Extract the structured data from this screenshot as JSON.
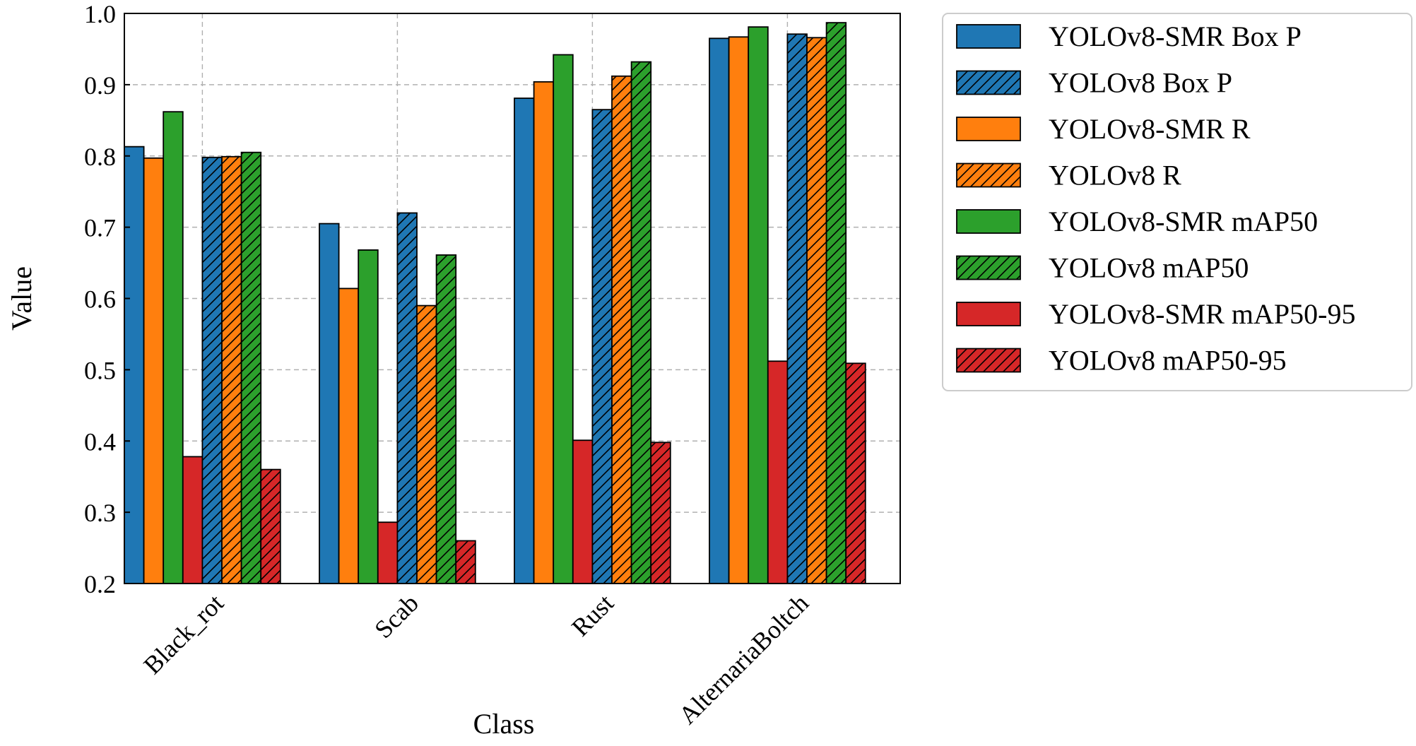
{
  "chart_data": {
    "type": "bar",
    "title": "",
    "xlabel": "Class",
    "ylabel": "Value",
    "ylim": [
      0.2,
      1.0
    ],
    "yticks": [
      "0.2",
      "0.3",
      "0.4",
      "0.5",
      "0.6",
      "0.7",
      "0.8",
      "0.9",
      "1.0"
    ],
    "grid": true,
    "legend_position": "outside-right-top",
    "categories": [
      "Black_rot",
      "Scab",
      "Rust",
      "AlternariaBoltch"
    ],
    "series": [
      {
        "name": "YOLOv8-SMR Box P",
        "color": "#1f77b4",
        "hatched": false,
        "values": [
          0.813,
          0.705,
          0.881,
          0.965
        ]
      },
      {
        "name": "YOLOv8-SMR R",
        "color": "#ff7f0e",
        "hatched": false,
        "values": [
          0.797,
          0.614,
          0.904,
          0.967
        ]
      },
      {
        "name": "YOLOv8-SMR mAP50",
        "color": "#2ca02c",
        "hatched": false,
        "values": [
          0.862,
          0.668,
          0.942,
          0.981
        ]
      },
      {
        "name": "YOLOv8-SMR mAP50-95",
        "color": "#d62728",
        "hatched": false,
        "values": [
          0.378,
          0.286,
          0.401,
          0.512
        ]
      },
      {
        "name": "YOLOv8 Box P",
        "color": "#1f77b4",
        "hatched": true,
        "values": [
          0.798,
          0.72,
          0.865,
          0.971
        ]
      },
      {
        "name": "YOLOv8 R",
        "color": "#ff7f0e",
        "hatched": true,
        "values": [
          0.799,
          0.59,
          0.912,
          0.966
        ]
      },
      {
        "name": "YOLOv8 mAP50",
        "color": "#2ca02c",
        "hatched": true,
        "values": [
          0.805,
          0.661,
          0.932,
          0.987
        ]
      },
      {
        "name": "YOLOv8 mAP50-95",
        "color": "#d62728",
        "hatched": true,
        "values": [
          0.36,
          0.26,
          0.398,
          0.509
        ]
      }
    ],
    "legend_order": [
      "YOLOv8-SMR Box P",
      "YOLOv8 Box P",
      "YOLOv8-SMR R",
      "YOLOv8 R",
      "YOLOv8-SMR mAP50",
      "YOLOv8 mAP50",
      "YOLOv8-SMR mAP50-95",
      "YOLOv8 mAP50-95"
    ]
  }
}
